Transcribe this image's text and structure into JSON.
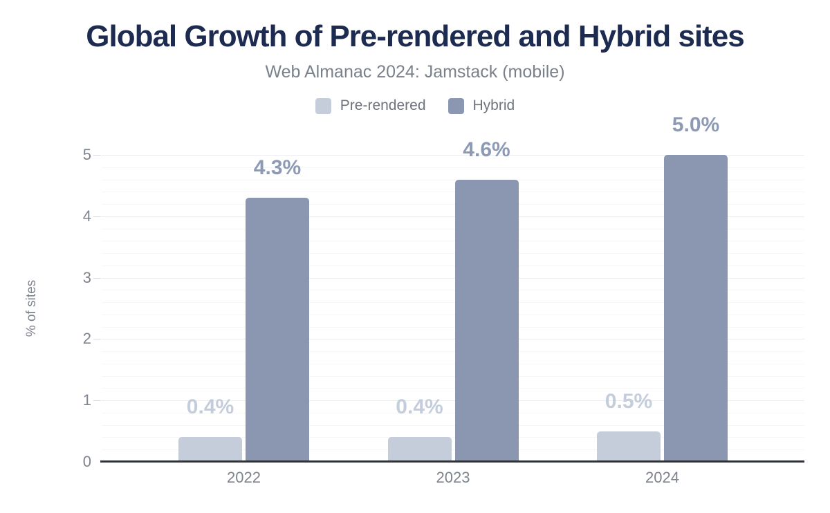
{
  "chart_data": {
    "type": "bar",
    "title": "Global Growth of Pre-rendered and Hybrid sites",
    "subtitle": "Web Almanac 2024: Jamstack (mobile)",
    "categories": [
      "2022",
      "2023",
      "2024"
    ],
    "series": [
      {
        "name": "Pre-rendered",
        "color": "#c5cdda",
        "label_color": "#c4cddc",
        "values": [
          0.4,
          0.4,
          0.5
        ],
        "data_labels": [
          "0.4%",
          "0.4%",
          "0.5%"
        ]
      },
      {
        "name": "Hybrid",
        "color": "#8b97b1",
        "label_color": "#8d9ab5",
        "values": [
          4.3,
          4.6,
          5.0
        ],
        "data_labels": [
          "4.3%",
          "4.6%",
          "5.0%"
        ]
      }
    ],
    "xlabel": "",
    "ylabel": "% of sites",
    "ylim": [
      0,
      5
    ],
    "yticks": [
      "0",
      "1",
      "2",
      "3",
      "4",
      "5"
    ],
    "minor_grid_step": 0.2,
    "grid": "horizontal-on",
    "legend_position": "top-center"
  },
  "colors": {
    "background": "#ffffff",
    "title": "#1d2b50",
    "subtitle": "#7b818b",
    "legend_text": "#6e737c",
    "axis_text": "#7e848d",
    "axis_line": "#2f3237",
    "gridline_minor": "#f5f6f7",
    "gridline_major": "#ebedf0",
    "tick_mark": "#d8dade"
  }
}
